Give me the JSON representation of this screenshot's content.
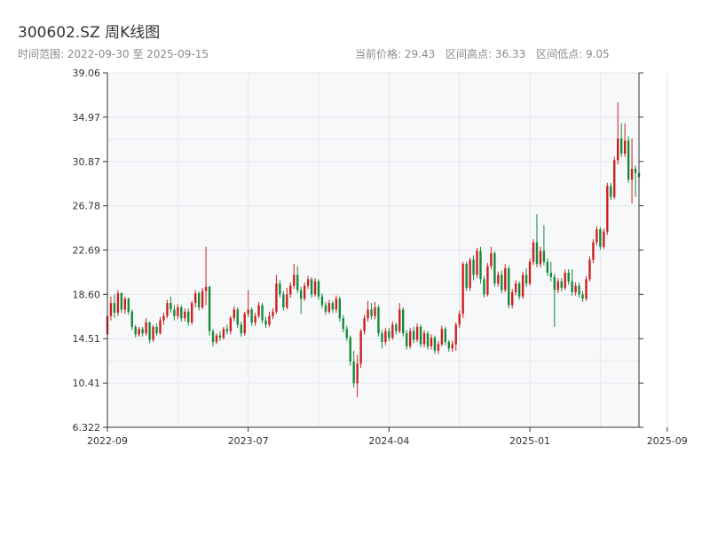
{
  "header": {
    "title": "300602.SZ 周K线图",
    "range_label": "时间范围: 2022-09-30 至 2025-09-15",
    "current_price": "当前价格: 29.43",
    "high": "区间高点: 36.33",
    "low": "区间低点: 9.05"
  },
  "colors": {
    "up": "#cc1f1f",
    "down": "#138a3a",
    "plot_bg": "#f7f8fa",
    "grid": "#e3e6ea",
    "axis": "#333333"
  },
  "chart_data": {
    "type": "candlestick",
    "title": "300602.SZ 周K线图",
    "x_range": [
      "2022-09-30",
      "2025-09-15"
    ],
    "ylim": [
      6.322,
      39.06
    ],
    "yticks": [
      "6.322",
      "10.41",
      "14.51",
      "18.60",
      "22.69",
      "26.78",
      "30.87",
      "34.97",
      "39.06"
    ],
    "ytick_values": [
      6.322,
      10.41,
      14.51,
      18.6,
      22.69,
      26.78,
      30.87,
      34.97,
      39.06
    ],
    "xticks": [
      "2022-09",
      "2023-07",
      "2024-04",
      "2025-01",
      "2025-09"
    ],
    "xtick_positions": [
      0,
      40,
      80,
      120,
      159
    ],
    "grid": true,
    "candles": [
      [
        14.9,
        16.6,
        16.6,
        14.2
      ],
      [
        16.6,
        17.8,
        18.4,
        16.2
      ],
      [
        17.8,
        16.9,
        18.6,
        16.4
      ],
      [
        16.9,
        18.7,
        19.0,
        16.6
      ],
      [
        18.7,
        17.2,
        18.8,
        16.9
      ],
      [
        17.2,
        18.2,
        18.4,
        16.8
      ],
      [
        18.2,
        17.0,
        18.3,
        16.7
      ],
      [
        17.0,
        15.6,
        17.2,
        15.3
      ],
      [
        15.6,
        14.9,
        15.8,
        14.6
      ],
      [
        14.9,
        15.4,
        15.6,
        14.7
      ],
      [
        15.4,
        15.0,
        15.6,
        14.7
      ],
      [
        15.0,
        16.0,
        16.4,
        14.8
      ],
      [
        16.0,
        14.4,
        16.1,
        14.1
      ],
      [
        14.4,
        15.6,
        15.8,
        14.2
      ],
      [
        15.6,
        15.0,
        15.9,
        14.8
      ],
      [
        15.0,
        16.2,
        16.5,
        14.9
      ],
      [
        16.2,
        16.6,
        16.9,
        15.8
      ],
      [
        16.6,
        17.8,
        18.1,
        16.4
      ],
      [
        17.8,
        17.2,
        18.4,
        16.9
      ],
      [
        17.2,
        16.6,
        17.6,
        16.2
      ],
      [
        16.6,
        17.4,
        17.7,
        16.3
      ],
      [
        17.4,
        16.4,
        17.6,
        16.1
      ],
      [
        16.4,
        17.0,
        17.3,
        16.1
      ],
      [
        17.0,
        16.0,
        17.3,
        15.7
      ],
      [
        16.0,
        17.8,
        18.0,
        15.8
      ],
      [
        17.8,
        18.7,
        19.0,
        17.4
      ],
      [
        18.7,
        17.4,
        18.9,
        17.1
      ],
      [
        17.4,
        18.9,
        19.2,
        17.2
      ],
      [
        18.9,
        19.3,
        23.0,
        17.6
      ],
      [
        19.3,
        15.2,
        19.4,
        14.8
      ],
      [
        15.2,
        14.2,
        15.4,
        13.8
      ],
      [
        14.2,
        14.8,
        15.0,
        14.0
      ],
      [
        14.8,
        14.6,
        15.2,
        14.3
      ],
      [
        14.6,
        15.4,
        15.6,
        14.4
      ],
      [
        15.4,
        15.2,
        15.8,
        14.9
      ],
      [
        15.2,
        16.4,
        16.6,
        14.9
      ],
      [
        16.4,
        17.2,
        17.5,
        16.1
      ],
      [
        17.2,
        15.8,
        17.4,
        15.5
      ],
      [
        15.8,
        15.0,
        16.1,
        14.7
      ],
      [
        15.0,
        16.8,
        17.0,
        14.8
      ],
      [
        16.8,
        17.2,
        19.0,
        16.5
      ],
      [
        17.2,
        16.0,
        17.4,
        15.7
      ],
      [
        16.0,
        16.6,
        16.9,
        15.7
      ],
      [
        16.6,
        17.6,
        17.9,
        16.4
      ],
      [
        17.6,
        16.2,
        17.8,
        15.9
      ],
      [
        16.2,
        15.8,
        16.5,
        15.5
      ],
      [
        15.8,
        16.6,
        17.0,
        15.6
      ],
      [
        16.6,
        17.0,
        17.3,
        16.3
      ],
      [
        17.0,
        19.6,
        20.4,
        16.8
      ],
      [
        19.6,
        18.6,
        19.9,
        18.3
      ],
      [
        18.6,
        17.4,
        18.9,
        17.1
      ],
      [
        17.4,
        18.6,
        19.2,
        17.2
      ],
      [
        18.6,
        19.4,
        19.7,
        18.3
      ],
      [
        19.4,
        20.4,
        21.4,
        19.1
      ],
      [
        20.4,
        19.0,
        21.2,
        18.7
      ],
      [
        19.0,
        18.2,
        19.3,
        16.8
      ],
      [
        18.2,
        19.4,
        19.7,
        18.0
      ],
      [
        19.4,
        20.0,
        20.3,
        19.1
      ],
      [
        20.0,
        18.6,
        20.2,
        18.3
      ],
      [
        18.6,
        19.8,
        20.1,
        18.4
      ],
      [
        19.8,
        18.4,
        20.0,
        18.1
      ],
      [
        18.4,
        17.6,
        18.7,
        17.3
      ],
      [
        17.6,
        17.0,
        17.9,
        16.7
      ],
      [
        17.0,
        17.8,
        18.1,
        16.8
      ],
      [
        17.8,
        17.2,
        18.0,
        16.9
      ],
      [
        17.2,
        18.2,
        18.5,
        16.9
      ],
      [
        18.2,
        16.4,
        18.4,
        16.1
      ],
      [
        16.4,
        15.4,
        16.7,
        15.1
      ],
      [
        15.4,
        14.6,
        15.7,
        14.3
      ],
      [
        14.6,
        12.4,
        14.8,
        12.0
      ],
      [
        12.4,
        10.4,
        13.4,
        10.0
      ],
      [
        10.4,
        12.2,
        13.0,
        9.1
      ],
      [
        12.2,
        15.2,
        15.4,
        11.8
      ],
      [
        15.2,
        16.4,
        16.7,
        14.9
      ],
      [
        16.4,
        17.2,
        18.0,
        16.1
      ],
      [
        17.2,
        16.6,
        17.8,
        16.3
      ],
      [
        16.6,
        17.4,
        17.9,
        16.3
      ],
      [
        17.4,
        15.0,
        17.6,
        14.7
      ],
      [
        15.0,
        14.2,
        15.3,
        13.6
      ],
      [
        14.2,
        15.2,
        15.5,
        13.9
      ],
      [
        15.2,
        14.6,
        15.5,
        14.3
      ],
      [
        14.6,
        15.8,
        16.1,
        14.4
      ],
      [
        15.8,
        15.2,
        16.0,
        14.9
      ],
      [
        15.2,
        17.2,
        17.8,
        15.0
      ],
      [
        17.2,
        15.0,
        17.4,
        14.7
      ],
      [
        15.0,
        13.8,
        15.3,
        13.5
      ],
      [
        13.8,
        15.2,
        15.5,
        13.6
      ],
      [
        15.2,
        14.4,
        15.6,
        14.1
      ],
      [
        14.4,
        15.6,
        15.9,
        14.2
      ],
      [
        15.6,
        14.0,
        15.8,
        13.7
      ],
      [
        14.0,
        15.0,
        15.3,
        13.7
      ],
      [
        15.0,
        13.8,
        15.2,
        13.5
      ],
      [
        13.8,
        14.6,
        14.9,
        13.5
      ],
      [
        14.6,
        13.4,
        14.8,
        13.1
      ],
      [
        13.4,
        14.0,
        14.3,
        13.1
      ],
      [
        14.0,
        15.4,
        15.7,
        13.8
      ],
      [
        15.4,
        14.2,
        15.6,
        13.9
      ],
      [
        14.2,
        13.6,
        14.4,
        13.3
      ],
      [
        13.6,
        14.0,
        14.3,
        13.3
      ],
      [
        14.0,
        15.8,
        16.0,
        13.4
      ],
      [
        15.8,
        16.8,
        17.1,
        15.5
      ],
      [
        16.8,
        21.4,
        21.6,
        16.4
      ],
      [
        21.4,
        19.2,
        21.6,
        18.9
      ],
      [
        19.2,
        21.8,
        22.0,
        18.9
      ],
      [
        21.8,
        20.4,
        22.2,
        19.9
      ],
      [
        20.4,
        22.6,
        22.9,
        20.1
      ],
      [
        22.6,
        20.0,
        23.0,
        19.6
      ],
      [
        20.0,
        18.6,
        20.3,
        18.3
      ],
      [
        18.6,
        21.2,
        21.5,
        18.4
      ],
      [
        21.2,
        22.4,
        23.0,
        20.9
      ],
      [
        22.4,
        19.6,
        22.6,
        19.3
      ],
      [
        19.6,
        20.4,
        20.7,
        19.3
      ],
      [
        20.4,
        19.0,
        20.8,
        18.7
      ],
      [
        19.0,
        21.0,
        21.4,
        18.8
      ],
      [
        21.0,
        17.6,
        21.2,
        17.3
      ],
      [
        17.6,
        18.8,
        19.1,
        17.3
      ],
      [
        18.8,
        19.6,
        19.9,
        18.5
      ],
      [
        19.6,
        18.4,
        19.8,
        18.1
      ],
      [
        18.4,
        20.4,
        20.7,
        18.2
      ],
      [
        20.4,
        19.6,
        21.0,
        19.3
      ],
      [
        19.6,
        21.6,
        21.9,
        19.4
      ],
      [
        21.6,
        23.4,
        23.7,
        21.3
      ],
      [
        23.4,
        21.4,
        26.0,
        21.1
      ],
      [
        21.4,
        22.6,
        23.0,
        21.1
      ],
      [
        22.6,
        21.6,
        25.0,
        21.3
      ],
      [
        21.6,
        20.6,
        21.9,
        20.3
      ],
      [
        20.6,
        20.2,
        21.6,
        19.8
      ],
      [
        20.2,
        19.0,
        20.5,
        15.6
      ],
      [
        19.0,
        19.8,
        20.1,
        18.7
      ],
      [
        19.8,
        19.2,
        20.1,
        18.9
      ],
      [
        19.2,
        20.6,
        20.9,
        19.0
      ],
      [
        20.6,
        19.8,
        20.9,
        19.5
      ],
      [
        19.8,
        18.8,
        20.9,
        18.5
      ],
      [
        18.8,
        19.4,
        19.7,
        18.5
      ],
      [
        19.4,
        18.6,
        19.7,
        18.3
      ],
      [
        18.6,
        18.2,
        18.9,
        17.9
      ],
      [
        18.2,
        20.0,
        20.3,
        18.0
      ],
      [
        20.0,
        21.8,
        22.1,
        19.8
      ],
      [
        21.8,
        23.4,
        23.7,
        21.5
      ],
      [
        23.4,
        24.6,
        24.9,
        23.1
      ],
      [
        24.6,
        23.0,
        24.8,
        22.7
      ],
      [
        23.0,
        24.4,
        24.7,
        22.8
      ],
      [
        24.4,
        28.6,
        28.9,
        24.1
      ],
      [
        28.6,
        27.6,
        28.9,
        27.3
      ],
      [
        27.6,
        31.0,
        31.3,
        27.4
      ],
      [
        31.0,
        33.0,
        36.33,
        30.6
      ],
      [
        33.0,
        31.6,
        34.4,
        31.3
      ],
      [
        31.6,
        32.8,
        34.4,
        31.3
      ],
      [
        32.8,
        29.2,
        33.2,
        28.9
      ],
      [
        29.2,
        30.2,
        33.0,
        27.0
      ],
      [
        30.2,
        29.8,
        30.5,
        27.6
      ],
      [
        29.8,
        29.43,
        30.6,
        29.0
      ]
    ]
  }
}
